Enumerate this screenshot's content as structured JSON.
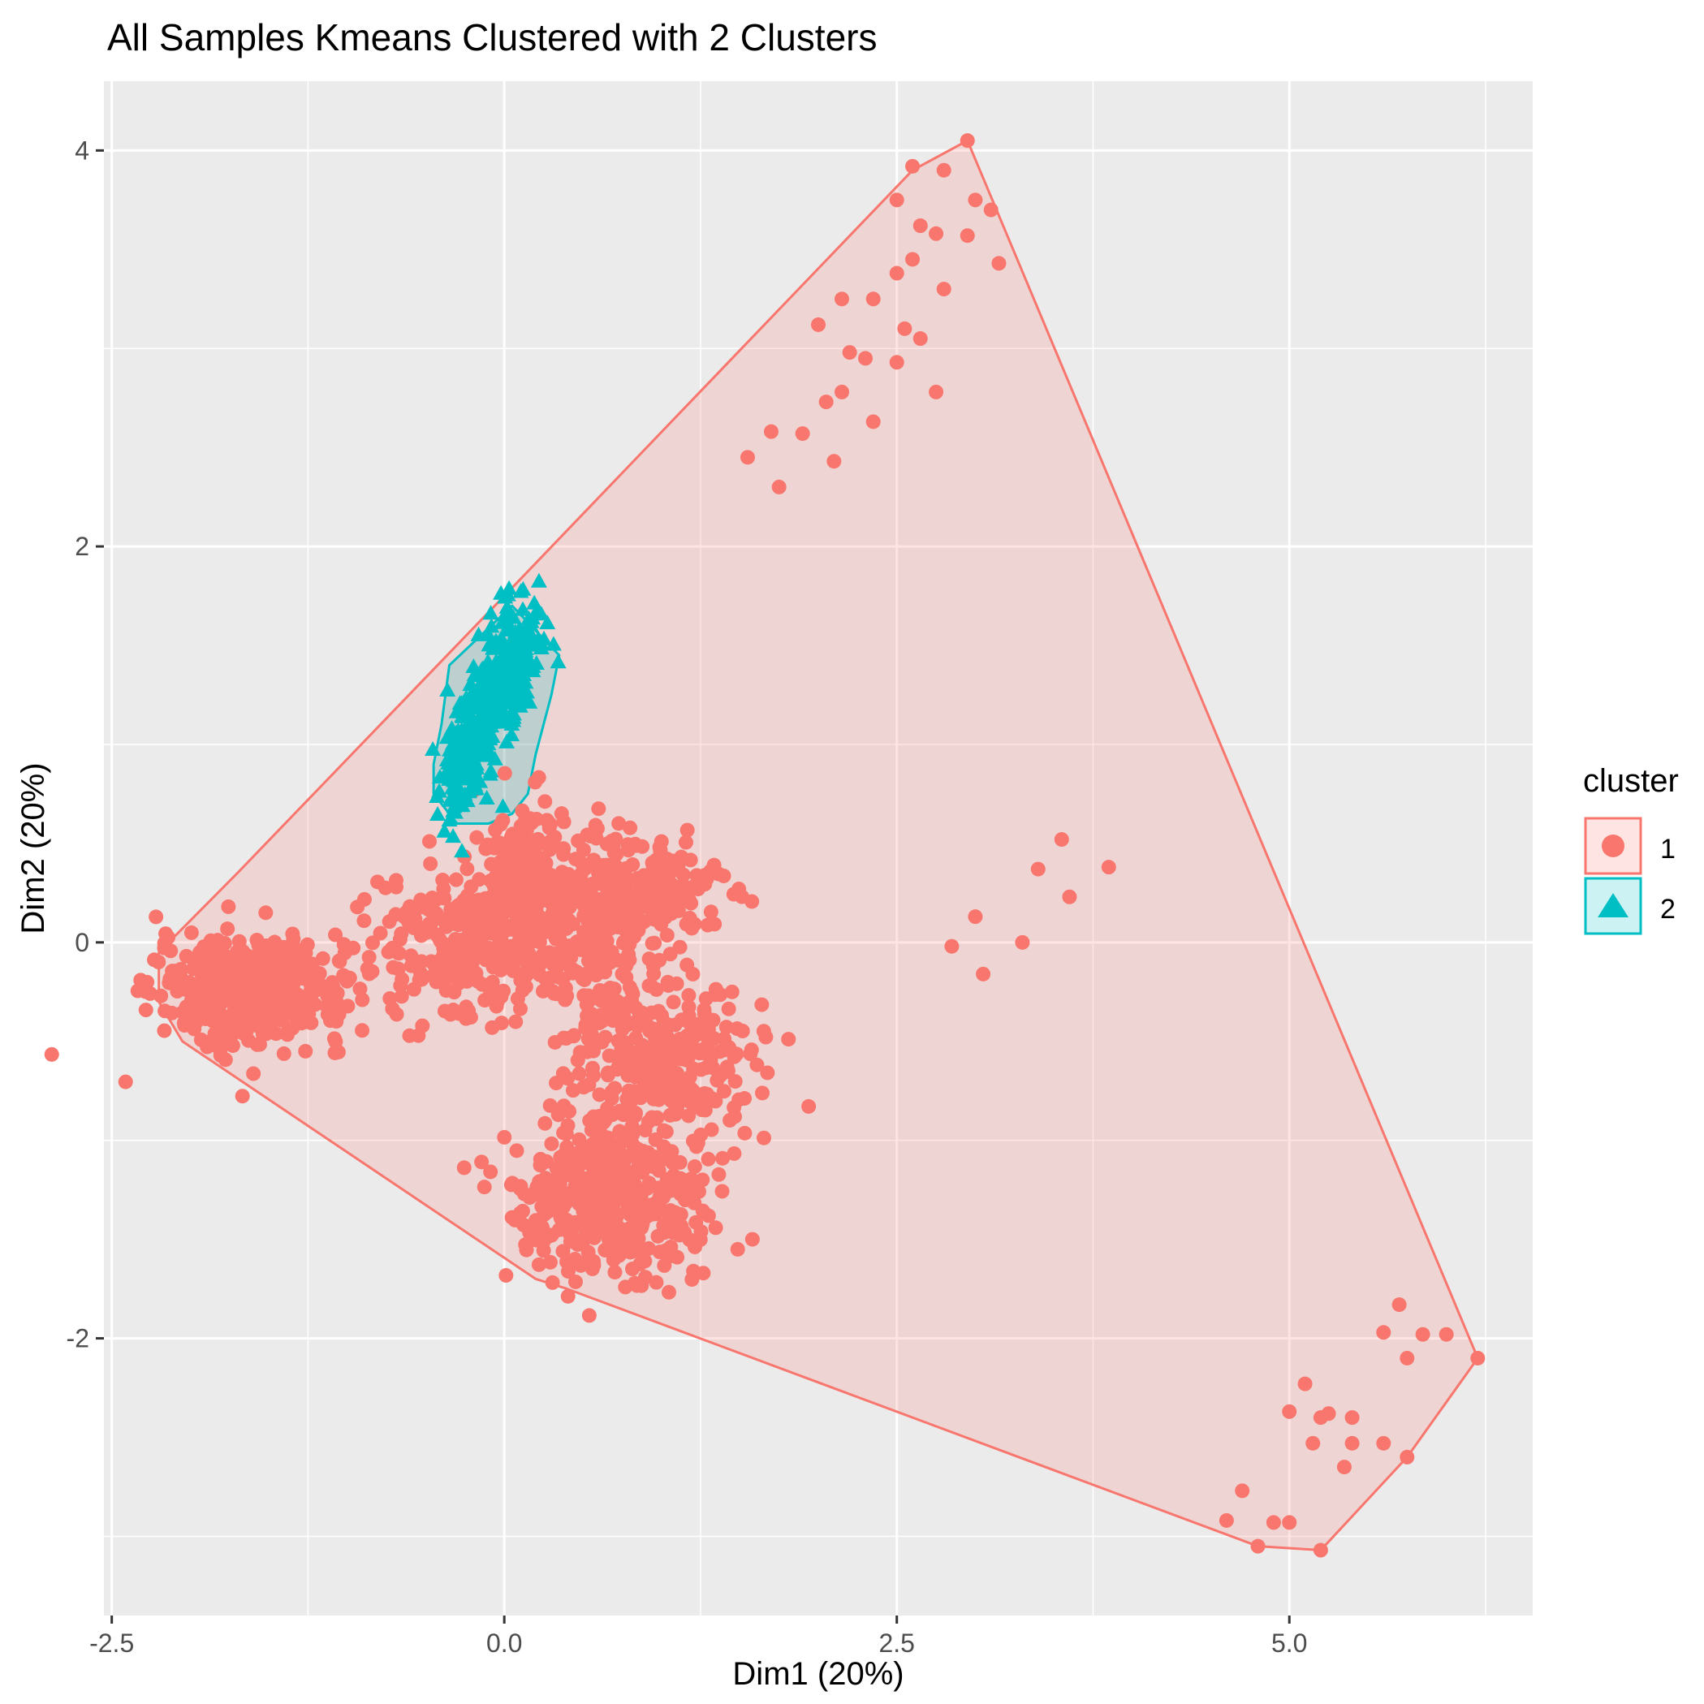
{
  "chart_data": {
    "type": "scatter",
    "title": "All Samples Kmeans Clustered with 2 Clusters",
    "xlabel": "Dim1 (20%)",
    "ylabel": "Dim2 (20%)",
    "xlim": [
      -2.55,
      6.55
    ],
    "ylim": [
      -3.4,
      4.35
    ],
    "x_ticks": [
      -2.5,
      0.0,
      2.5,
      5.0
    ],
    "x_tick_labels": [
      "-2.5",
      "0.0",
      "2.5",
      "5.0"
    ],
    "y_ticks": [
      -2,
      0,
      2,
      4
    ],
    "y_tick_labels": [
      "-2",
      "0",
      "2",
      "4"
    ],
    "grid": true,
    "legend": {
      "title": "cluster",
      "placement": "right",
      "entries": [
        {
          "label": "1",
          "color": "#F8766D",
          "shape": "circle"
        },
        {
          "label": "2",
          "color": "#00BFC4",
          "shape": "triangle"
        }
      ]
    },
    "series": [
      {
        "name": "1",
        "color": "#F8766D",
        "hull": [
          [
            -2.2,
            -0.05
          ],
          [
            -2.2,
            -0.3
          ],
          [
            -2.05,
            -0.5
          ],
          [
            0.2,
            -1.7
          ],
          [
            0.4,
            -1.75
          ],
          [
            4.8,
            -3.05
          ],
          [
            5.2,
            -3.07
          ],
          [
            5.75,
            -2.6
          ],
          [
            6.2,
            -2.1
          ],
          [
            2.95,
            4.05
          ],
          [
            2.6,
            3.9
          ],
          [
            0.0,
            1.75
          ],
          [
            -1.7,
            0.35
          ]
        ],
        "points": [
          [
            2.95,
            4.05
          ],
          [
            2.6,
            3.92
          ],
          [
            2.8,
            3.9
          ],
          [
            2.5,
            3.75
          ],
          [
            3.0,
            3.75
          ],
          [
            3.1,
            3.7
          ],
          [
            2.65,
            3.62
          ],
          [
            2.75,
            3.58
          ],
          [
            2.95,
            3.57
          ],
          [
            2.6,
            3.45
          ],
          [
            3.15,
            3.43
          ],
          [
            2.5,
            3.38
          ],
          [
            2.8,
            3.3
          ],
          [
            2.15,
            3.25
          ],
          [
            2.35,
            3.25
          ],
          [
            2.0,
            3.12
          ],
          [
            2.55,
            3.1
          ],
          [
            2.65,
            3.05
          ],
          [
            2.2,
            2.98
          ],
          [
            2.3,
            2.95
          ],
          [
            2.5,
            2.93
          ],
          [
            2.75,
            2.78
          ],
          [
            2.15,
            2.78
          ],
          [
            2.05,
            2.73
          ],
          [
            2.35,
            2.63
          ],
          [
            1.7,
            2.58
          ],
          [
            1.9,
            2.57
          ],
          [
            1.55,
            2.45
          ],
          [
            2.1,
            2.43
          ],
          [
            1.75,
            2.3
          ],
          [
            3.55,
            0.52
          ],
          [
            3.85,
            0.38
          ],
          [
            3.4,
            0.37
          ],
          [
            3.6,
            0.23
          ],
          [
            3.0,
            0.13
          ],
          [
            2.85,
            -0.02
          ],
          [
            3.3,
            0.0
          ],
          [
            3.05,
            -0.16
          ],
          [
            5.7,
            -1.83
          ],
          [
            5.6,
            -1.97
          ],
          [
            5.85,
            -1.98
          ],
          [
            6.0,
            -1.98
          ],
          [
            5.75,
            -2.1
          ],
          [
            5.1,
            -2.23
          ],
          [
            5.0,
            -2.37
          ],
          [
            5.2,
            -2.4
          ],
          [
            5.25,
            -2.38
          ],
          [
            5.4,
            -2.4
          ],
          [
            5.15,
            -2.53
          ],
          [
            5.4,
            -2.53
          ],
          [
            5.6,
            -2.53
          ],
          [
            5.35,
            -2.65
          ],
          [
            4.7,
            -2.77
          ],
          [
            4.6,
            -2.92
          ],
          [
            4.9,
            -2.93
          ],
          [
            5.0,
            -2.93
          ],
          [
            4.8,
            -3.05
          ],
          [
            5.2,
            -3.07
          ],
          [
            5.75,
            -2.6
          ],
          [
            6.2,
            -2.1
          ]
        ]
      },
      {
        "name": "2",
        "color": "#00BFC4",
        "hull": [
          [
            -0.35,
            1.4
          ],
          [
            0.05,
            1.7
          ],
          [
            0.35,
            1.45
          ],
          [
            0.3,
            1.25
          ],
          [
            0.2,
            0.95
          ],
          [
            0.15,
            0.75
          ],
          [
            0.05,
            0.65
          ],
          [
            -0.1,
            0.6
          ],
          [
            -0.3,
            0.6
          ],
          [
            -0.45,
            0.75
          ],
          [
            -0.45,
            0.9
          ],
          [
            -0.4,
            1.1
          ]
        ],
        "points": [
          [
            -0.03,
            1.22
          ]
        ]
      }
    ]
  }
}
